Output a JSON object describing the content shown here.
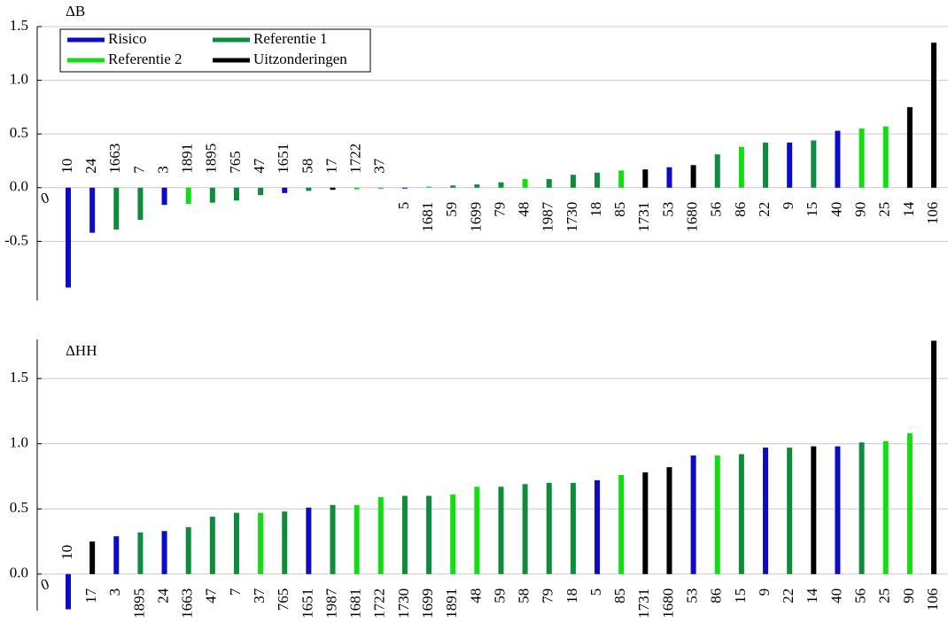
{
  "chart_data": [
    {
      "type": "bar",
      "title": "ΔB",
      "xlabel": "0",
      "categories": [
        "10",
        "24",
        "1663",
        "7",
        "3",
        "1891",
        "1895",
        "765",
        "47",
        "1651",
        "58",
        "17",
        "1722",
        "37",
        "5",
        "1681",
        "59",
        "1699",
        "79",
        "48",
        "1987",
        "1730",
        "18",
        "85",
        "1731",
        "53",
        "1680",
        "56",
        "86",
        "22",
        "9",
        "15",
        "40",
        "90",
        "25",
        "14",
        "106"
      ],
      "series": [
        {
          "name": "Risico",
          "color": "#0b0bc8",
          "values": [
            -0.93,
            -0.42,
            null,
            null,
            -0.16,
            null,
            null,
            null,
            null,
            -0.05,
            null,
            null,
            null,
            null,
            0,
            null,
            null,
            null,
            null,
            null,
            null,
            null,
            null,
            null,
            null,
            0.19,
            null,
            null,
            null,
            null,
            0.42,
            null,
            0.53,
            null,
            null,
            null,
            null
          ]
        },
        {
          "name": "Referentie 1",
          "color": "#0e8c3c",
          "values": [
            null,
            null,
            -0.39,
            -0.3,
            null,
            null,
            -0.14,
            -0.12,
            -0.07,
            null,
            -0.03,
            null,
            null,
            null,
            null,
            null,
            0.02,
            0.03,
            0.05,
            null,
            0.08,
            0.12,
            0.14,
            null,
            null,
            null,
            null,
            0.31,
            null,
            0.42,
            null,
            0.44,
            null,
            null,
            null,
            null,
            null
          ]
        },
        {
          "name": "Referentie 2",
          "color": "#11dd11",
          "values": [
            null,
            null,
            null,
            null,
            null,
            -0.15,
            null,
            null,
            null,
            null,
            null,
            null,
            -0.015,
            -0.01,
            null,
            0.01,
            null,
            null,
            null,
            0.08,
            null,
            null,
            null,
            0.16,
            null,
            null,
            null,
            null,
            0.38,
            null,
            null,
            null,
            null,
            0.55,
            0.57,
            null,
            null
          ]
        },
        {
          "name": "Uitzonderingen",
          "color": "#000000",
          "values": [
            null,
            null,
            null,
            null,
            null,
            null,
            null,
            null,
            null,
            null,
            null,
            -0.02,
            null,
            null,
            null,
            null,
            null,
            null,
            null,
            null,
            null,
            null,
            null,
            null,
            0.17,
            null,
            0.21,
            null,
            null,
            null,
            null,
            null,
            null,
            null,
            null,
            0.75,
            1.35
          ]
        }
      ],
      "ylim": [
        -1.05,
        1.5
      ],
      "yticks": [
        -0.5,
        {
          "value": 0,
          "label": "0.0"
        },
        0.5,
        {
          "value": 1,
          "label": "1.0"
        },
        1.5
      ],
      "grid": true,
      "legend": "upper left"
    },
    {
      "type": "bar",
      "title": "ΔHH",
      "xlabel": "0",
      "categories": [
        "10",
        "17",
        "3",
        "1895",
        "24",
        "1663",
        "47",
        "7",
        "37",
        "765",
        "1651",
        "1987",
        "1681",
        "1722",
        "1730",
        "1699",
        "1891",
        "48",
        "59",
        "58",
        "79",
        "18",
        "5",
        "85",
        "1731",
        "1680",
        "53",
        "86",
        "15",
        "9",
        "22",
        "14",
        "40",
        "56",
        "25",
        "90",
        "106"
      ],
      "series": [
        {
          "color": "#0b0bc8",
          "values": [
            -0.27,
            null,
            0.29,
            null,
            0.33,
            null,
            null,
            null,
            null,
            null,
            0.51,
            null,
            null,
            null,
            null,
            null,
            null,
            null,
            null,
            null,
            null,
            null,
            0.72,
            null,
            null,
            null,
            0.91,
            null,
            null,
            0.97,
            null,
            null,
            0.98,
            null,
            null,
            null,
            null
          ]
        },
        {
          "color": "#0e8c3c",
          "values": [
            null,
            null,
            null,
            0.32,
            null,
            0.36,
            0.44,
            0.47,
            null,
            0.48,
            null,
            0.53,
            null,
            null,
            0.6,
            0.6,
            null,
            null,
            0.67,
            0.69,
            0.7,
            0.7,
            null,
            null,
            null,
            null,
            null,
            null,
            0.92,
            null,
            0.97,
            null,
            null,
            1.01,
            null,
            null,
            null
          ]
        },
        {
          "color": "#11dd11",
          "values": [
            null,
            null,
            null,
            null,
            null,
            null,
            null,
            null,
            0.47,
            null,
            null,
            null,
            0.53,
            0.59,
            null,
            null,
            0.61,
            0.67,
            null,
            null,
            null,
            null,
            null,
            0.76,
            null,
            null,
            null,
            0.91,
            null,
            null,
            null,
            null,
            null,
            null,
            1.02,
            1.08,
            null
          ]
        },
        {
          "color": "#000000",
          "values": [
            null,
            0.25,
            null,
            null,
            null,
            null,
            null,
            null,
            null,
            null,
            null,
            null,
            null,
            null,
            null,
            null,
            null,
            null,
            null,
            null,
            null,
            null,
            null,
            null,
            0.78,
            0.82,
            null,
            null,
            null,
            null,
            null,
            0.98,
            null,
            null,
            null,
            null,
            1.79
          ]
        }
      ],
      "ylim": [
        -0.28,
        1.8
      ],
      "yticks": [
        {
          "value": 0,
          "label": "0.0"
        },
        0.5,
        {
          "value": 1,
          "label": "1.0"
        },
        1.5
      ],
      "grid": true
    }
  ]
}
